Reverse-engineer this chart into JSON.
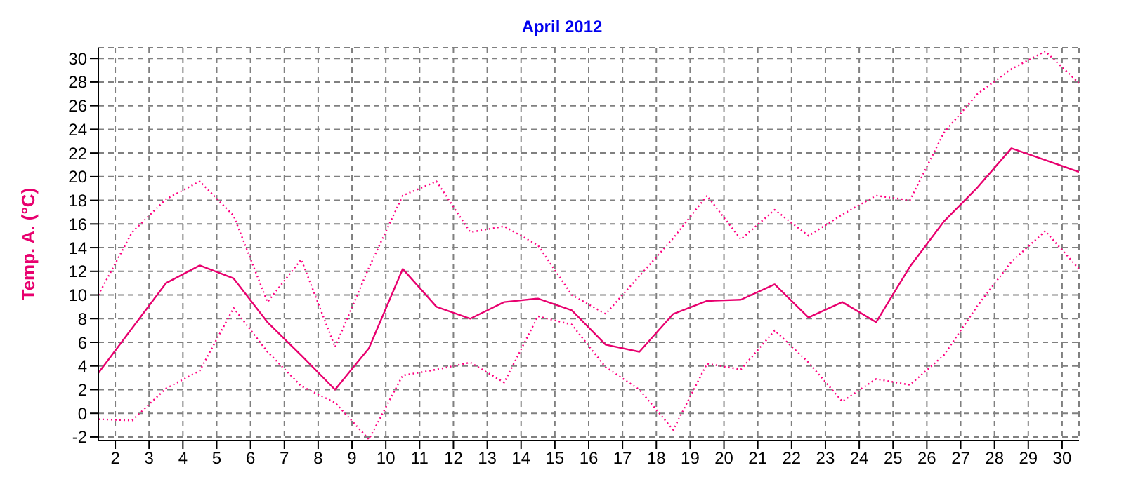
{
  "chart_data": {
    "type": "line",
    "title": "April 2012",
    "ylabel": "Temp. A. (°C)",
    "x": [
      1.5,
      2.5,
      3.5,
      4.5,
      5.5,
      6.5,
      7.5,
      8.5,
      9.5,
      10.5,
      11.5,
      12.5,
      13.5,
      14.5,
      15.5,
      16.5,
      17.5,
      18.5,
      19.5,
      20.5,
      21.5,
      22.5,
      23.5,
      24.5,
      25.5,
      26.5,
      27.5,
      28.5,
      29.5,
      30.5
    ],
    "series": [
      {
        "color": "#ff0080",
        "line_style": "dotted",
        "values": [
          10.0,
          15.3,
          18.1,
          19.6,
          16.7,
          9.4,
          13.0,
          5.6,
          12.3,
          18.4,
          19.6,
          15.3,
          15.8,
          14.2,
          10.0,
          8.4,
          11.6,
          14.8,
          18.4,
          14.7,
          17.2,
          15.0,
          16.8,
          18.4,
          18.0,
          23.7,
          27.0,
          29.1,
          30.6,
          27.9
        ]
      },
      {
        "color": "#e8006e",
        "line_style": "solid",
        "values": [
          3.4,
          7.2,
          11.0,
          12.5,
          11.4,
          7.7,
          4.9,
          2.0,
          5.5,
          12.2,
          9.0,
          8.0,
          9.4,
          9.7,
          8.7,
          5.8,
          5.2,
          8.4,
          9.5,
          9.6,
          10.9,
          8.1,
          9.4,
          7.7,
          12.4,
          16.2,
          19.1,
          22.4,
          21.4,
          20.4
        ]
      },
      {
        "color": "#ff0080",
        "line_style": "dotted",
        "values": [
          -0.5,
          -0.6,
          2.1,
          3.6,
          8.9,
          5.2,
          2.3,
          0.9,
          -2.2,
          3.2,
          3.7,
          4.3,
          2.6,
          8.2,
          7.5,
          3.9,
          2.0,
          -1.4,
          4.2,
          3.7,
          7.0,
          4.3,
          1.0,
          2.9,
          2.4,
          4.9,
          9.1,
          12.8,
          15.4,
          12.2
        ]
      }
    ],
    "xlim": [
      1.5,
      30.5
    ],
    "xticks": [
      2,
      3,
      4,
      5,
      6,
      7,
      8,
      9,
      10,
      11,
      12,
      13,
      14,
      15,
      16,
      17,
      18,
      19,
      20,
      21,
      22,
      23,
      24,
      25,
      26,
      27,
      28,
      29,
      30
    ],
    "ylim": [
      -2.3,
      30.9
    ],
    "yticks": [
      -2,
      0,
      2,
      4,
      6,
      8,
      10,
      12,
      14,
      16,
      18,
      20,
      22,
      24,
      26,
      28,
      30
    ],
    "grid": true,
    "marker": "none",
    "legend": false
  }
}
